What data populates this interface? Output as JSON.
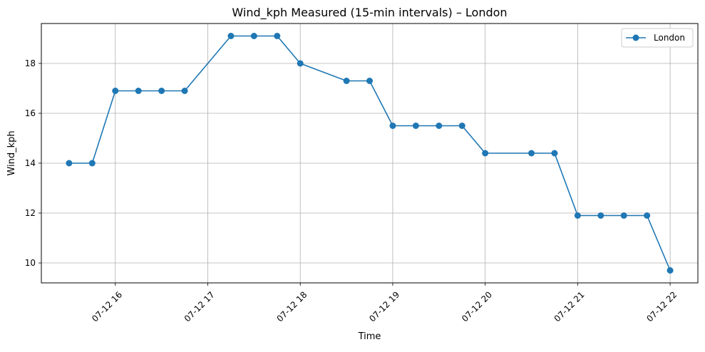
{
  "chart_data": {
    "type": "line",
    "title": "Wind_kph Measured (15-min intervals) – London",
    "xlabel": "Time",
    "ylabel": "Wind_kph",
    "x_tick_labels": [
      "07-12 16",
      "07-12 17",
      "07-12 18",
      "07-12 19",
      "07-12 20",
      "07-12 21",
      "07-12 22"
    ],
    "x_tick_times": [
      "2024-07-12 16:00",
      "2024-07-12 17:00",
      "2024-07-12 18:00",
      "2024-07-12 19:00",
      "2024-07-12 20:00",
      "2024-07-12 21:00",
      "2024-07-12 22:00"
    ],
    "y_ticks": [
      10,
      12,
      14,
      16,
      18
    ],
    "y_tick_labels": [
      "10",
      "12",
      "14",
      "16",
      "18"
    ],
    "xlim": [
      "2024-07-12 15:12",
      "2024-07-12 22:18"
    ],
    "ylim": [
      9.2,
      19.6
    ],
    "grid": true,
    "legend_position": "top-right",
    "color": "#1f77b4",
    "series": [
      {
        "name": "London",
        "x": [
          "2024-07-12 15:30",
          "2024-07-12 15:45",
          "2024-07-12 16:00",
          "2024-07-12 16:15",
          "2024-07-12 16:30",
          "2024-07-12 16:45",
          "2024-07-12 17:15",
          "2024-07-12 17:30",
          "2024-07-12 17:45",
          "2024-07-12 18:00",
          "2024-07-12 18:30",
          "2024-07-12 18:45",
          "2024-07-12 19:00",
          "2024-07-12 19:15",
          "2024-07-12 19:30",
          "2024-07-12 19:45",
          "2024-07-12 20:00",
          "2024-07-12 20:30",
          "2024-07-12 20:45",
          "2024-07-12 21:00",
          "2024-07-12 21:15",
          "2024-07-12 21:30",
          "2024-07-12 21:45",
          "2024-07-12 22:00"
        ],
        "values": [
          14.0,
          14.0,
          16.9,
          16.9,
          16.9,
          16.9,
          19.1,
          19.1,
          19.1,
          18.0,
          17.3,
          17.3,
          15.5,
          15.5,
          15.5,
          15.5,
          14.4,
          14.4,
          14.4,
          11.9,
          11.9,
          11.9,
          11.9,
          9.7
        ]
      }
    ]
  }
}
